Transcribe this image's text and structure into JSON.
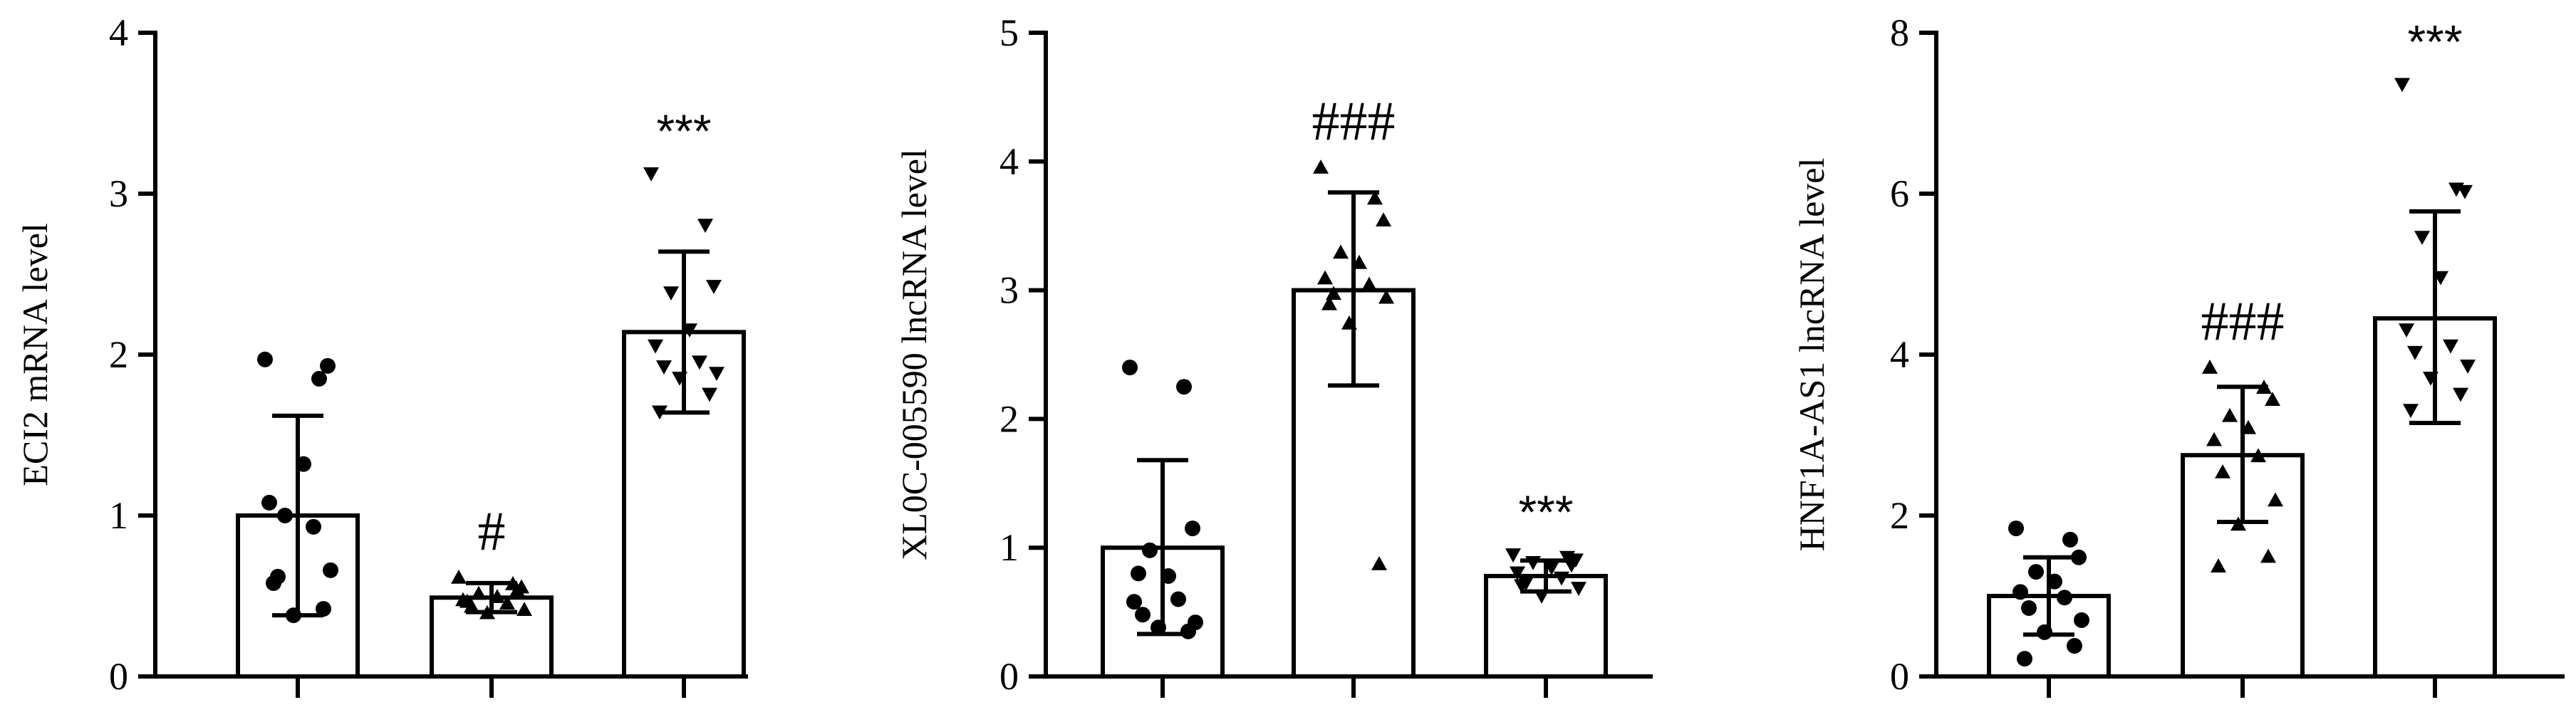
{
  "chart_data": [
    {
      "type": "bar",
      "ylabel": "ECI2 mRNA level",
      "ylim": [
        0,
        4
      ],
      "yticks": [
        0,
        1,
        2,
        3,
        4
      ],
      "grid": false,
      "bars": [
        {
          "mean": 1.0,
          "sd_upper": 1.62,
          "sd_lower": 0.38,
          "marker": "circle",
          "points": [
            1.97,
            1.85,
            1.93,
            1.0,
            1.32,
            1.08,
            0.93,
            0.62,
            0.66,
            0.38,
            0.42,
            0.58
          ],
          "annotation": ""
        },
        {
          "mean": 0.49,
          "sd_upper": 0.58,
          "sd_lower": 0.4,
          "marker": "triangle-up",
          "points": [
            0.62,
            0.58,
            0.56,
            0.52,
            0.5,
            0.48,
            0.46,
            0.44,
            0.42,
            0.4,
            0.54,
            0.47
          ],
          "annotation": "#"
        },
        {
          "mean": 2.14,
          "sd_upper": 2.64,
          "sd_lower": 1.64,
          "marker": "triangle-down",
          "points": [
            3.12,
            2.8,
            2.42,
            2.38,
            2.15,
            2.05,
            1.95,
            1.92,
            1.88,
            1.85,
            1.75,
            1.64
          ],
          "annotation": "***"
        }
      ]
    },
    {
      "type": "bar",
      "ylabel": "XL0C-005590 lncRNA level",
      "ylim": [
        0,
        5
      ],
      "yticks": [
        0,
        1,
        2,
        3,
        4,
        5
      ],
      "grid": false,
      "bars": [
        {
          "mean": 1.0,
          "sd_upper": 1.68,
          "sd_lower": 0.33,
          "marker": "circle",
          "points": [
            2.4,
            2.25,
            1.15,
            0.98,
            0.78,
            0.58,
            0.6,
            0.48,
            0.42,
            0.38,
            0.35,
            0.8
          ],
          "annotation": ""
        },
        {
          "mean": 3.0,
          "sd_upper": 3.76,
          "sd_lower": 2.26,
          "marker": "triangle-up",
          "points": [
            3.96,
            3.72,
            3.55,
            3.3,
            3.22,
            3.1,
            3.05,
            2.98,
            2.95,
            2.75,
            0.88,
            2.9
          ],
          "annotation": "###"
        },
        {
          "mean": 0.78,
          "sd_upper": 0.9,
          "sd_lower": 0.66,
          "marker": "triangle-down",
          "points": [
            0.94,
            0.92,
            0.9,
            0.88,
            0.84,
            0.8,
            0.76,
            0.72,
            0.68,
            0.62,
            0.86,
            0.7
          ],
          "annotation": "***"
        }
      ]
    },
    {
      "type": "bar",
      "ylabel": "HNF1A-AS1 lncRNA level",
      "ylim": [
        0,
        8
      ],
      "yticks": [
        0,
        2,
        4,
        6,
        8
      ],
      "grid": false,
      "bars": [
        {
          "mean": 1.0,
          "sd_upper": 1.48,
          "sd_lower": 0.52,
          "marker": "circle",
          "points": [
            1.84,
            1.7,
            1.48,
            1.3,
            1.18,
            1.05,
            0.98,
            0.85,
            0.7,
            0.55,
            0.38,
            0.22
          ],
          "annotation": ""
        },
        {
          "mean": 2.75,
          "sd_upper": 3.6,
          "sd_lower": 1.92,
          "marker": "triangle-up",
          "points": [
            3.85,
            3.6,
            3.45,
            3.25,
            3.1,
            2.95,
            2.75,
            2.55,
            2.2,
            1.9,
            1.5,
            1.38
          ],
          "annotation": "###"
        },
        {
          "mean": 4.45,
          "sd_upper": 5.78,
          "sd_lower": 3.15,
          "marker": "triangle-down",
          "points": [
            7.35,
            6.05,
            6.02,
            5.45,
            4.95,
            4.3,
            4.1,
            4.02,
            3.85,
            3.7,
            3.5,
            3.3
          ],
          "annotation": "***"
        }
      ]
    }
  ]
}
